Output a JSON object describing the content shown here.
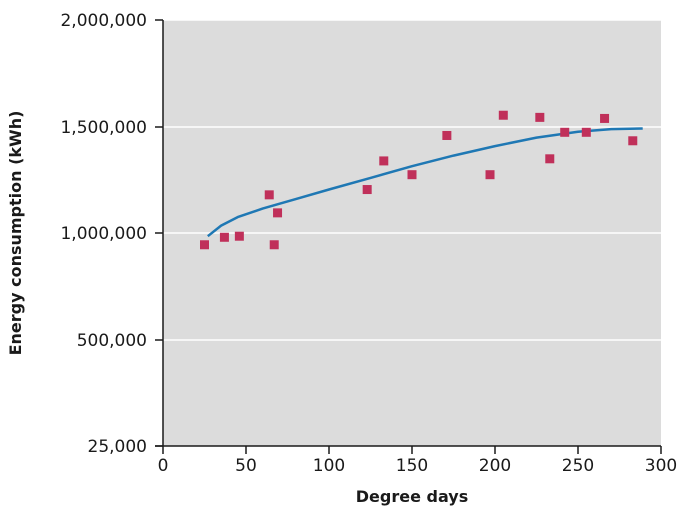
{
  "chart_data": {
    "type": "scatter",
    "title": "",
    "xlabel": "Degree days",
    "ylabel": "Energy consumption (kWh)",
    "xlim": [
      0,
      300
    ],
    "x_ticks": [
      0,
      50,
      100,
      150,
      200,
      250,
      300
    ],
    "x_tick_labels": [
      "0",
      "50",
      "100",
      "150",
      "200",
      "250",
      "300"
    ],
    "y_ticks": [
      25000,
      500000,
      1000000,
      1500000,
      2000000
    ],
    "y_tick_labels": [
      "25,000",
      "500,000",
      "1,000,000",
      "1,500,000",
      "2,000,000"
    ],
    "grid": "horizontal",
    "background_color": "#dcdcdc",
    "marker_color": "#c0305a",
    "trend_color": "#1f78b4",
    "points": [
      {
        "x": 25,
        "y": 945000
      },
      {
        "x": 37,
        "y": 980000
      },
      {
        "x": 46,
        "y": 985000
      },
      {
        "x": 64,
        "y": 1180000
      },
      {
        "x": 67,
        "y": 945000
      },
      {
        "x": 69,
        "y": 1095000
      },
      {
        "x": 123,
        "y": 1205000
      },
      {
        "x": 133,
        "y": 1340000
      },
      {
        "x": 150,
        "y": 1275000
      },
      {
        "x": 171,
        "y": 1460000
      },
      {
        "x": 197,
        "y": 1275000
      },
      {
        "x": 205,
        "y": 1555000
      },
      {
        "x": 227,
        "y": 1545000
      },
      {
        "x": 233,
        "y": 1350000
      },
      {
        "x": 242,
        "y": 1475000
      },
      {
        "x": 255,
        "y": 1475000
      },
      {
        "x": 266,
        "y": 1540000
      },
      {
        "x": 283,
        "y": 1435000
      }
    ],
    "trend_line": [
      {
        "x": 27,
        "y": 985000
      },
      {
        "x": 35,
        "y": 1035000
      },
      {
        "x": 45,
        "y": 1075000
      },
      {
        "x": 60,
        "y": 1115000
      },
      {
        "x": 80,
        "y": 1160000
      },
      {
        "x": 100,
        "y": 1205000
      },
      {
        "x": 125,
        "y": 1260000
      },
      {
        "x": 150,
        "y": 1315000
      },
      {
        "x": 175,
        "y": 1365000
      },
      {
        "x": 200,
        "y": 1410000
      },
      {
        "x": 225,
        "y": 1450000
      },
      {
        "x": 250,
        "y": 1478000
      },
      {
        "x": 270,
        "y": 1490000
      },
      {
        "x": 289,
        "y": 1493000
      }
    ]
  }
}
